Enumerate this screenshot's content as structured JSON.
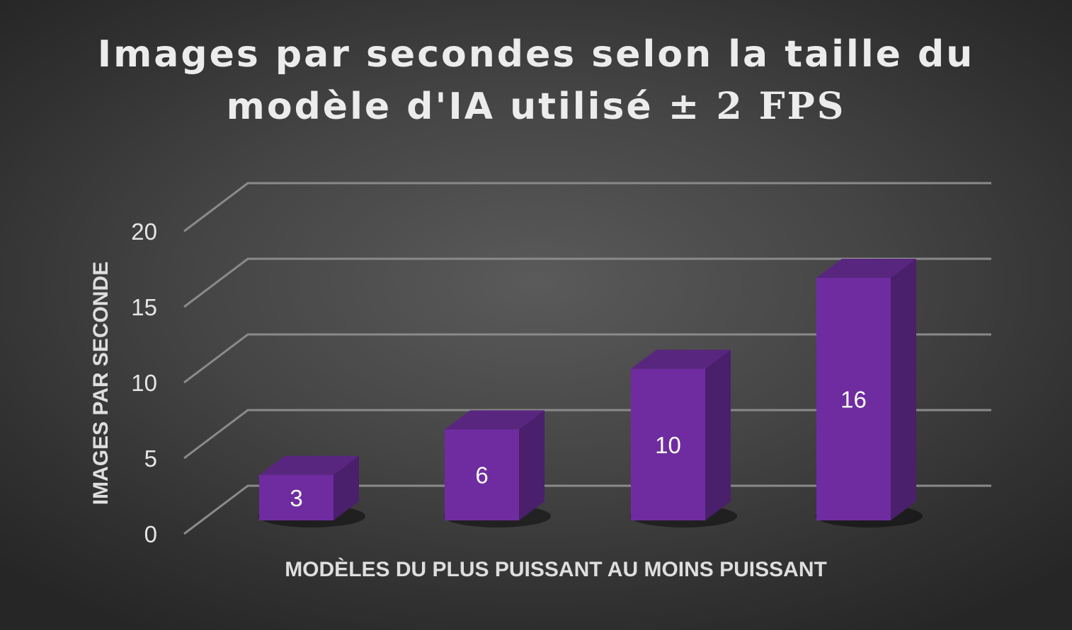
{
  "chart_data": {
    "type": "bar",
    "style": "3d-column",
    "title_main": "Images par secondes selon la taille du",
    "title_line2": "modèle d'IA utilisé",
    "title_suffix": "± 2 FPS",
    "xlabel": "MODÈLES DU PLUS PUISSANT AU MOINS PUISSANT",
    "ylabel": "IMAGES PAR SECONDE",
    "ylim": [
      0,
      20
    ],
    "yticks": [
      "0",
      "5",
      "10",
      "15",
      "20"
    ],
    "categories": [
      "",
      "",
      "",
      ""
    ],
    "values": [
      3,
      6,
      10,
      16
    ],
    "data_labels": [
      "3",
      "6",
      "10",
      "16"
    ],
    "grid": true,
    "legend": "none",
    "colors": {
      "bar_front": "#6f2ca0",
      "bar_side": "#4a1f6b",
      "bar_top": "#59267f",
      "gridline": "#8a8a8a"
    }
  }
}
